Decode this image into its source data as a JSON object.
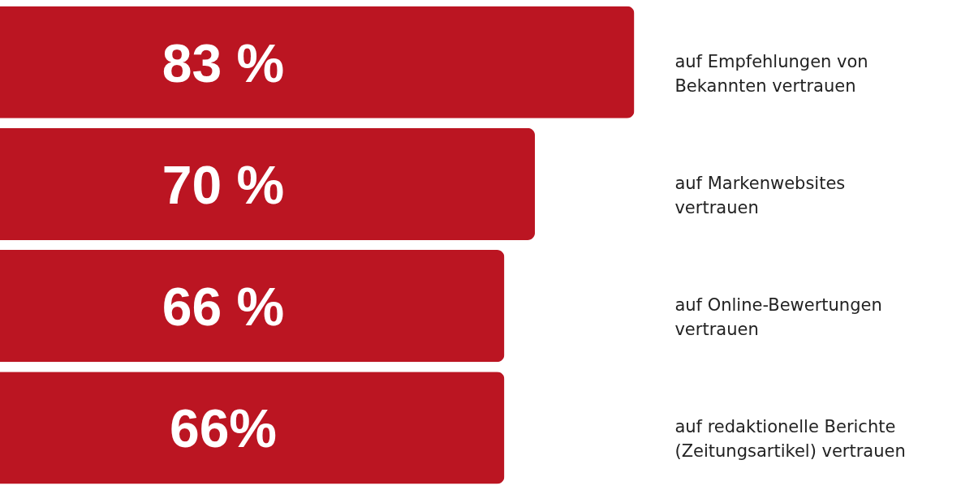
{
  "chart_data": {
    "type": "bar",
    "orientation": "horizontal",
    "categories": [
      "auf Empfehlungen von Bekannten vertrauen",
      "auf Markenwebsites vertrauen",
      "auf Online-Bewertungen vertrauen",
      "auf redaktionelle Berichte (Zeitungsartikel) vertrauen"
    ],
    "values": [
      83,
      70,
      66,
      66
    ],
    "value_labels": [
      "83 %",
      "70 %",
      "66 %",
      "66%"
    ],
    "color": "#bb1522"
  }
}
